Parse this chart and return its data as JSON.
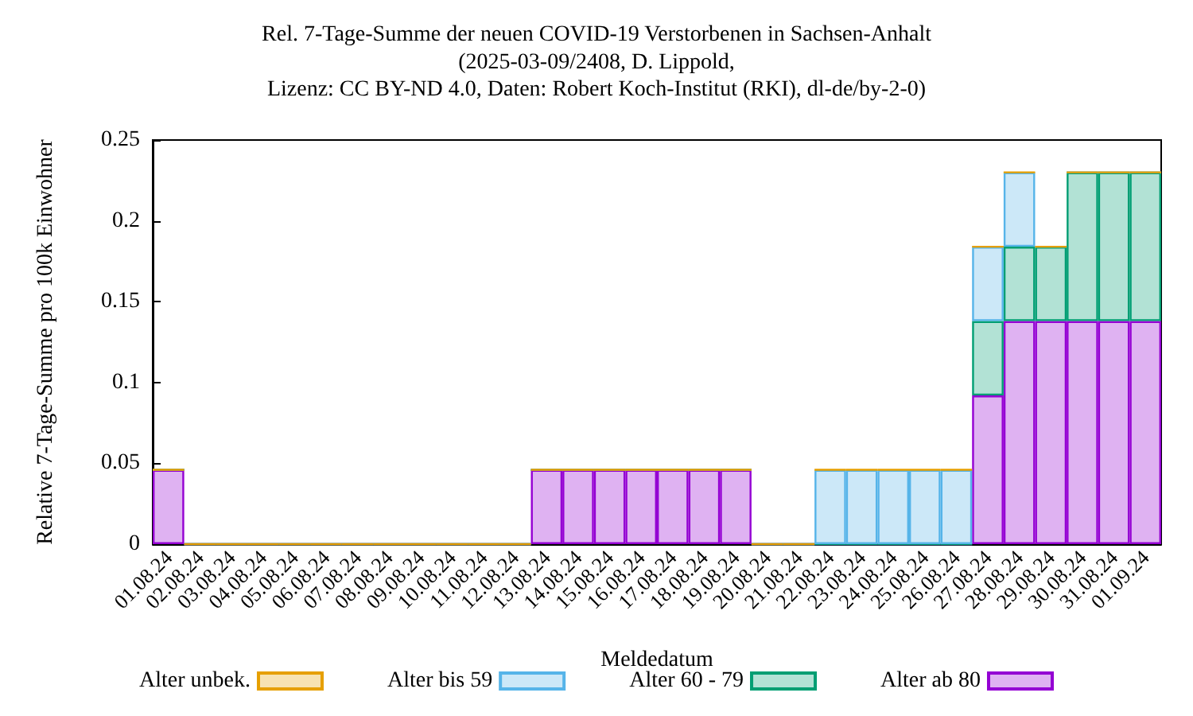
{
  "chart_data": {
    "type": "bar",
    "title": "Rel. 7-Tage-Summe der neuen COVID-19 Verstorbenen in Sachsen-Anhalt",
    "subtitle": "(2025-03-09/2408, D. Lippold,\nLizenz: CC BY-ND 4.0, Daten: Robert Koch-Institut (RKI), dl-de/by-2-0)",
    "xlabel": "Meldedatum",
    "ylabel": "Relative 7-Tage-Summe pro 100k Einwohner",
    "categories": [
      "01.08.24",
      "02.08.24",
      "03.08.24",
      "04.08.24",
      "05.08.24",
      "06.08.24",
      "07.08.24",
      "08.08.24",
      "09.08.24",
      "10.08.24",
      "11.08.24",
      "12.08.24",
      "13.08.24",
      "14.08.24",
      "15.08.24",
      "16.08.24",
      "17.08.24",
      "18.08.24",
      "19.08.24",
      "20.08.24",
      "21.08.24",
      "22.08.24",
      "23.08.24",
      "24.08.24",
      "25.08.24",
      "26.08.24",
      "27.08.24",
      "28.08.24",
      "29.08.24",
      "30.08.24",
      "31.08.24",
      "01.09.24"
    ],
    "stacked": true,
    "legend": "bottom",
    "grid": false,
    "ylim": [
      0,
      0.25
    ],
    "yticks": [
      0,
      0.05,
      0.1,
      0.15,
      0.2,
      0.25
    ],
    "series": [
      {
        "name": "Alter ab 80",
        "color": "#9400d3",
        "values": [
          0.046,
          0,
          0,
          0,
          0,
          0,
          0,
          0,
          0,
          0,
          0,
          0,
          0.046,
          0.046,
          0.046,
          0.046,
          0.046,
          0.046,
          0.046,
          0,
          0,
          0,
          0,
          0,
          0,
          0,
          0.092,
          0.138,
          0.138,
          0.138,
          0.138,
          0.138
        ]
      },
      {
        "name": "Alter 60 - 79",
        "color": "#009e73",
        "values": [
          0,
          0,
          0,
          0,
          0,
          0,
          0,
          0,
          0,
          0,
          0,
          0,
          0,
          0,
          0,
          0,
          0,
          0,
          0,
          0,
          0,
          0,
          0,
          0,
          0,
          0,
          0.046,
          0.046,
          0.046,
          0.092,
          0.092,
          0.092
        ]
      },
      {
        "name": "Alter bis 59",
        "color": "#56b4e9",
        "values": [
          0,
          0,
          0,
          0,
          0,
          0,
          0,
          0,
          0,
          0,
          0,
          0,
          0,
          0,
          0,
          0,
          0,
          0,
          0,
          0,
          0,
          0.046,
          0.046,
          0.046,
          0.046,
          0.046,
          0.046,
          0.046,
          0,
          0,
          0,
          0
        ]
      },
      {
        "name": "Alter unbek.",
        "color": "#e69f00",
        "values": [
          0,
          0,
          0,
          0,
          0,
          0,
          0,
          0,
          0,
          0,
          0,
          0,
          0,
          0,
          0,
          0,
          0,
          0,
          0,
          0,
          0,
          0,
          0,
          0,
          0,
          0,
          0,
          0,
          0,
          0,
          0,
          0
        ]
      }
    ]
  }
}
